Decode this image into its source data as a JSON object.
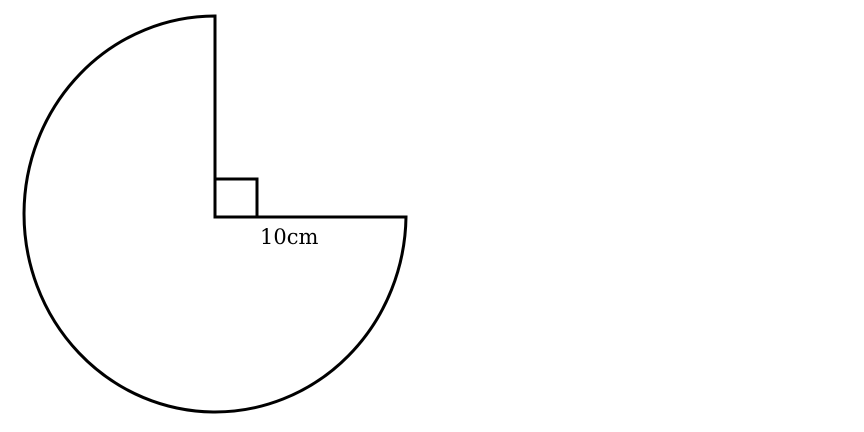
{
  "figure": {
    "shape": "three-quarter circle sector",
    "radius_label": "10cm",
    "central_angle_missing_deg": 90,
    "right_angle_marker": true,
    "stroke_color": "#000000",
    "background_color": "#ffffff"
  }
}
